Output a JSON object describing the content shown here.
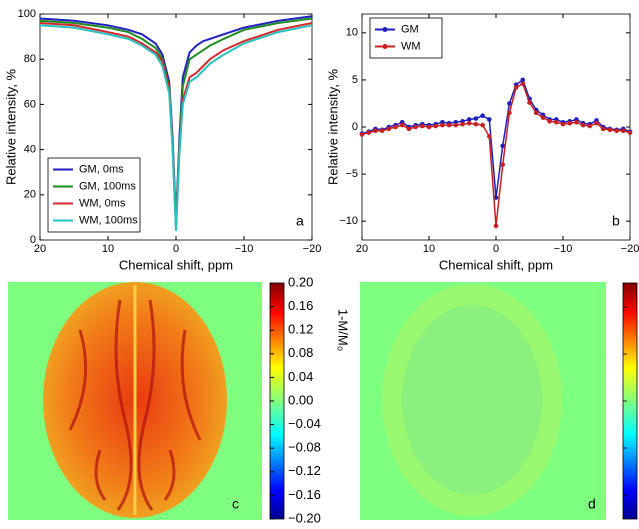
{
  "chart_data": [
    {
      "type": "line",
      "xlabel": "Chemical shift, ppm",
      "ylabel": "Relative intensity, %",
      "panel_label": "a",
      "x": [
        20,
        15,
        10,
        7,
        5,
        4,
        3,
        2,
        1,
        0.5,
        0,
        -0.5,
        -1,
        -2,
        -3,
        -4,
        -5,
        -7,
        -10,
        -15,
        -20
      ],
      "series": [
        {
          "name": "GM, 0ms",
          "color": "#1f1fbf",
          "values": [
            98,
            97,
            95,
            93,
            91,
            89,
            87,
            82,
            70,
            45,
            8,
            45,
            72,
            83,
            86,
            88,
            89,
            91,
            94,
            97,
            99
          ]
        },
        {
          "name": "GM, 100ms",
          "color": "#1f8a1f",
          "values": [
            97,
            96,
            94,
            92,
            89,
            87,
            85,
            80,
            68,
            42,
            6,
            42,
            68,
            80,
            82,
            84,
            86,
            89,
            93,
            96,
            98
          ]
        },
        {
          "name": "WM, 0ms",
          "color": "#d42a2a",
          "values": [
            96,
            95,
            92,
            90,
            87,
            85,
            83,
            79,
            67,
            42,
            5,
            40,
            62,
            72,
            74,
            77,
            80,
            84,
            88,
            93,
            96
          ]
        },
        {
          "name": "WM, 100ms",
          "color": "#27c0c0",
          "values": [
            95,
            94,
            91,
            89,
            86,
            84,
            82,
            77,
            65,
            40,
            4,
            38,
            60,
            70,
            72,
            75,
            78,
            82,
            87,
            92,
            95
          ]
        }
      ],
      "xlim": [
        20,
        -20
      ],
      "xticks": [
        20,
        10,
        0,
        {
          "value": -10,
          "label": "−10"
        },
        {
          "value": -20,
          "label": "−20"
        }
      ],
      "ylim": [
        0,
        100
      ],
      "yticks": [
        0,
        20,
        40,
        60,
        80,
        100
      ],
      "legend": "lower left",
      "markers": false
    },
    {
      "type": "line",
      "xlabel": "Chemical shift, ppm",
      "ylabel": "Relative intensity, %",
      "panel_label": "b",
      "x": [
        20,
        19,
        18,
        17,
        16,
        15,
        14,
        13,
        12,
        11,
        10,
        9,
        8,
        7,
        6,
        5,
        4,
        3,
        2,
        1,
        0,
        -1,
        -2,
        -3,
        -4,
        -5,
        -6,
        -7,
        -8,
        -9,
        -10,
        -11,
        -12,
        -13,
        -14,
        -15,
        -16,
        -17,
        -18,
        -19,
        -20
      ],
      "series": [
        {
          "name": "GM",
          "color": "#1f1fbf",
          "values": [
            -0.7,
            -0.5,
            -0.2,
            -0.3,
            0,
            0.2,
            0.5,
            0,
            0.2,
            0.3,
            0.2,
            0.3,
            0.5,
            0.4,
            0.5,
            0.6,
            0.8,
            0.9,
            1.2,
            0.8,
            -7.5,
            -2,
            2.5,
            4.5,
            5,
            3,
            1.8,
            1.3,
            0.8,
            0.8,
            0.5,
            0.6,
            0.8,
            0.4,
            0.3,
            0.7,
            0,
            -0.2,
            -0.3,
            -0.2,
            -0.5
          ]
        },
        {
          "name": "WM",
          "color": "#c82020",
          "values": [
            -0.8,
            -0.6,
            -0.4,
            -0.4,
            -0.2,
            0,
            0.2,
            -0.2,
            0,
            0.1,
            0,
            0.1,
            0.2,
            0.2,
            0.2,
            0.3,
            0.4,
            0.3,
            0.2,
            -1,
            -10.5,
            -4,
            1.5,
            4.2,
            4.6,
            2.6,
            1.5,
            1,
            0.6,
            0.5,
            0.3,
            0.4,
            0.5,
            0.2,
            0.1,
            0.4,
            -0.2,
            -0.3,
            -0.4,
            -0.4,
            -0.6
          ]
        }
      ],
      "xlim": [
        20,
        -20
      ],
      "xticks": [
        20,
        10,
        0,
        {
          "value": -10,
          "label": "−10"
        },
        {
          "value": -20,
          "label": "−20"
        }
      ],
      "ylim": [
        -12,
        12
      ],
      "yticks": [
        {
          "value": -10,
          "label": "−10"
        },
        {
          "value": -5,
          "label": "−5"
        },
        0,
        5,
        10
      ],
      "legend": "upper left",
      "markers": true
    },
    {
      "type": "image",
      "panel_label": "c",
      "colorbar_label": "1-M/M₀",
      "clim": [
        -0.2,
        0.2
      ],
      "colorbar_ticks": [
        {
          "value": 0.2,
          "label": "0.20"
        },
        {
          "value": 0.16,
          "label": "0.16"
        },
        {
          "value": 0.12,
          "label": "0.12"
        },
        {
          "value": 0.08,
          "label": "0.08"
        },
        {
          "value": 0.04,
          "label": "0.04"
        },
        {
          "value": 0,
          "label": "0.00"
        },
        {
          "value": -0.04,
          "label": "−0.04"
        },
        {
          "value": -0.08,
          "label": "−0.08"
        },
        {
          "value": -0.12,
          "label": "−0.12"
        },
        {
          "value": -0.16,
          "label": "−0.16"
        },
        {
          "value": -0.2,
          "label": "−0.20"
        }
      ]
    },
    {
      "type": "image",
      "panel_label": "d"
    }
  ]
}
